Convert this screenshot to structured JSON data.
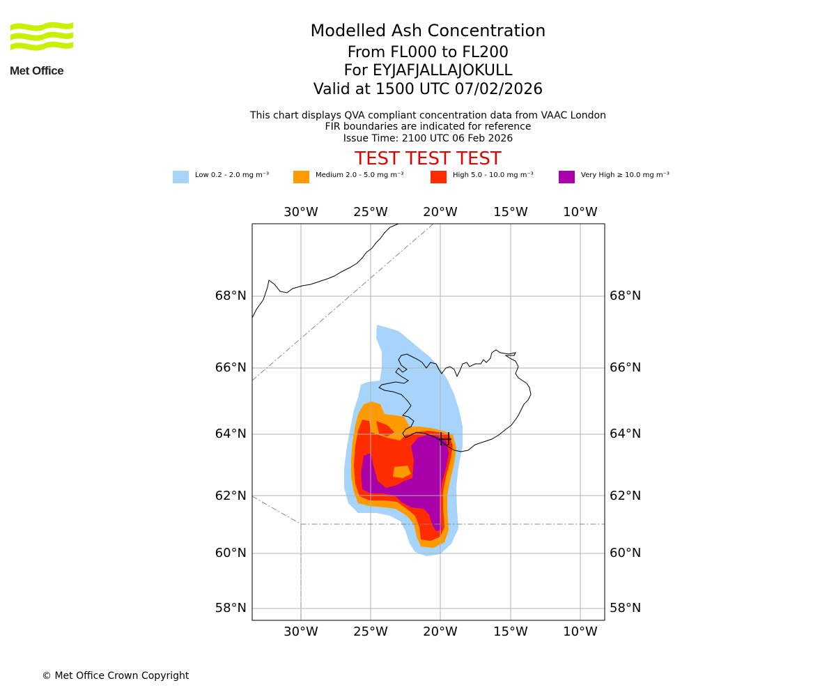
{
  "header": {
    "logo_text": "Met Office",
    "title": "Modelled Ash Concentration",
    "levels": "From FL000 to FL200",
    "volcano": "For EYJAFJALLAJOKULL",
    "valid": "Valid at 1500 UTC 07/02/2026",
    "note1": "This chart displays QVA compliant concentration data from VAAC London",
    "note2": "FIR boundaries are indicated for reference",
    "issue": "Issue Time: 2100 UTC 06 Feb 2026",
    "test_banner": "TEST TEST TEST"
  },
  "legend": [
    {
      "label": "Low 0.2 - 2.0 mg m⁻³",
      "color": "#a6d4fa"
    },
    {
      "label": "Medium 2.0 - 5.0 mg m⁻³",
      "color": "#ff9a00"
    },
    {
      "label": "High 5.0 - 10.0 mg m⁻³",
      "color": "#ff2c00"
    },
    {
      "label": "Very High ≥ 10.0 mg m⁻³",
      "color": "#aa00aa"
    }
  ],
  "map": {
    "lon_labels": [
      "30°W",
      "25°W",
      "20°W",
      "15°W",
      "10°W"
    ],
    "lat_labels": [
      "68°N",
      "66°N",
      "64°N",
      "62°N",
      "60°N",
      "58°N"
    ]
  },
  "footer": {
    "copyright": "© Met Office Crown Copyright"
  }
}
